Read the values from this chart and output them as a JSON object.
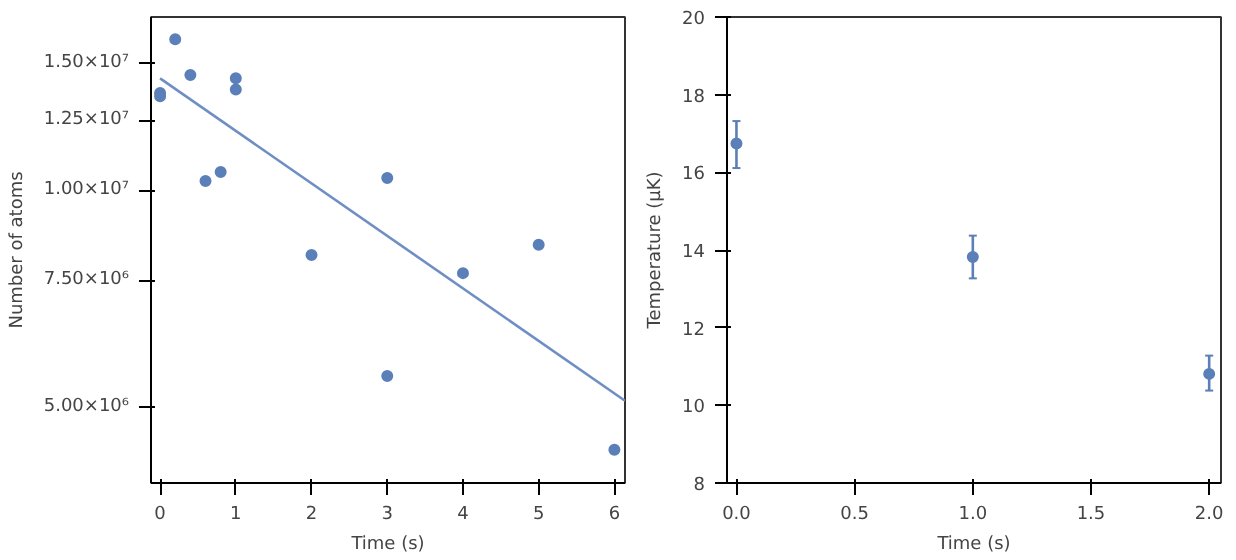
{
  "chart_data": [
    {
      "type": "scatter",
      "xlabel": "Time (s)",
      "ylabel": "Number of atoms",
      "log": "y",
      "grid": false,
      "marker": "circle",
      "xlim": [
        -0.12,
        6.14
      ],
      "ylim": [
        3920000,
        17400000
      ],
      "xticks": [
        0,
        1,
        2,
        3,
        4,
        5,
        6
      ],
      "yticks": [
        {
          "value": 5000000,
          "label": "5.00×10⁶"
        },
        {
          "value": 7500000,
          "label": "7.50×10⁶"
        },
        {
          "value": 10000000,
          "label": "1.00×10⁷"
        },
        {
          "value": 12500000,
          "label": "1.25×10⁷"
        },
        {
          "value": 15000000,
          "label": "1.50×10⁷"
        }
      ],
      "series": [
        {
          "color": "#5b7fb8",
          "x": [
            0,
            0,
            0.2,
            0.4,
            0.6,
            0.8,
            1,
            1,
            2,
            3,
            3,
            4,
            5,
            6
          ],
          "values": [
            13650000,
            13500000,
            16200000,
            14450000,
            10300000,
            10600000,
            14300000,
            13800000,
            8130000,
            10400000,
            5520000,
            7670000,
            8400000,
            4360000
          ]
        },
        {
          "type": "line",
          "color": "#6f8fc4",
          "x": [
            0,
            6.14
          ],
          "values": [
            14300000,
            5100000
          ],
          "marker": "none"
        }
      ]
    },
    {
      "type": "scatter",
      "xlabel": "Time (s)",
      "ylabel": "Temperature (μK)",
      "grid": false,
      "marker": "circle",
      "xlim": [
        -0.04,
        2.05
      ],
      "ylim": [
        8,
        20
      ],
      "xticks": [
        {
          "value": 0,
          "label": "0.0"
        },
        {
          "value": 0.5,
          "label": "0.5"
        },
        {
          "value": 1,
          "label": "1.0"
        },
        {
          "value": 1.5,
          "label": "1.5"
        },
        {
          "value": 2,
          "label": "2.0"
        }
      ],
      "yticks": [
        8,
        10,
        12,
        14,
        16,
        18,
        20
      ],
      "series": [
        {
          "color": "#5b7fb8",
          "x": [
            0,
            1,
            2
          ],
          "values": [
            16.74,
            13.82,
            10.81
          ],
          "errors": [
            [
              16.11,
              17.32
            ],
            [
              13.27,
              14.37
            ],
            [
              10.38,
              11.28
            ]
          ]
        }
      ]
    }
  ]
}
